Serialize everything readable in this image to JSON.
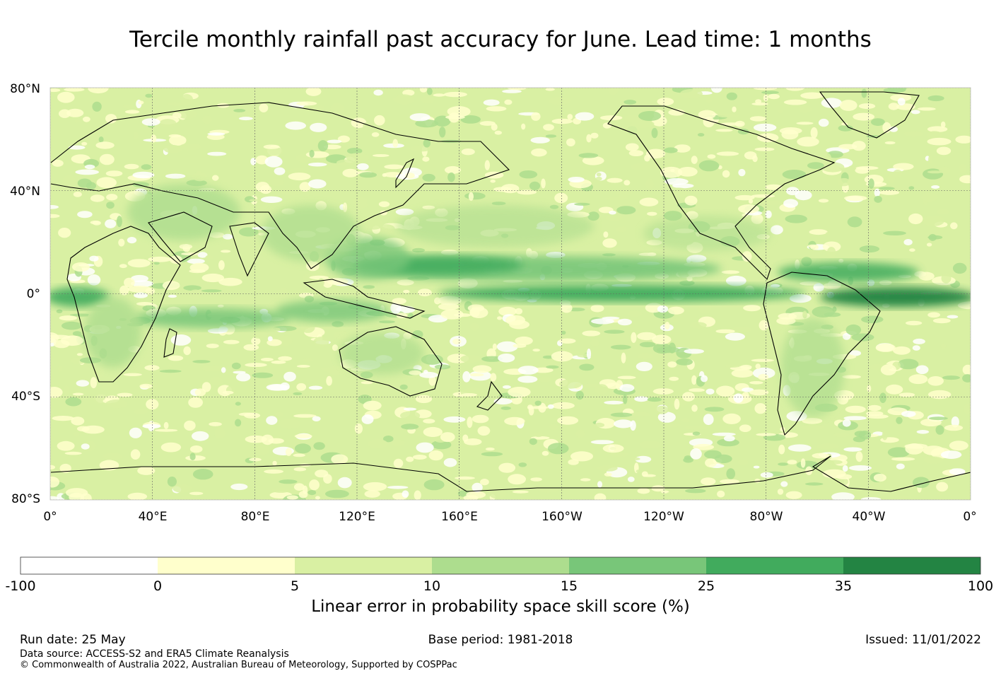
{
  "title": "Tercile monthly rainfall past accuracy for June. Lead time: 1 months",
  "map": {
    "lat_labels": [
      "80°N",
      "40°N",
      "0°",
      "40°S",
      "80°S"
    ],
    "lon_labels": [
      "0°",
      "40°E",
      "80°E",
      "120°E",
      "160°E",
      "160°W",
      "120°W",
      "80°W",
      "40°W",
      "0°"
    ]
  },
  "colorbar": {
    "title": "Linear error in probability space skill score (%)",
    "bounds": [
      "-100",
      "0",
      "5",
      "10",
      "15",
      "25",
      "35",
      "100"
    ],
    "colors": [
      "#ffffff",
      "#ffffcc",
      "#d9f0a3",
      "#addd8e",
      "#78c679",
      "#41ab5d",
      "#238443"
    ]
  },
  "footer": {
    "run_date": "Run date: 25 May",
    "base_period": "Base period: 1981-2018",
    "issued": "Issued: 11/01/2022",
    "data_source": "Data source: ACCESS-S2 and ERA5 Climate Reanalysis",
    "copyright": "© Commonwealth of Australia 2022, Australian Bureau of Meteorology, Supported by COSPPac"
  }
}
